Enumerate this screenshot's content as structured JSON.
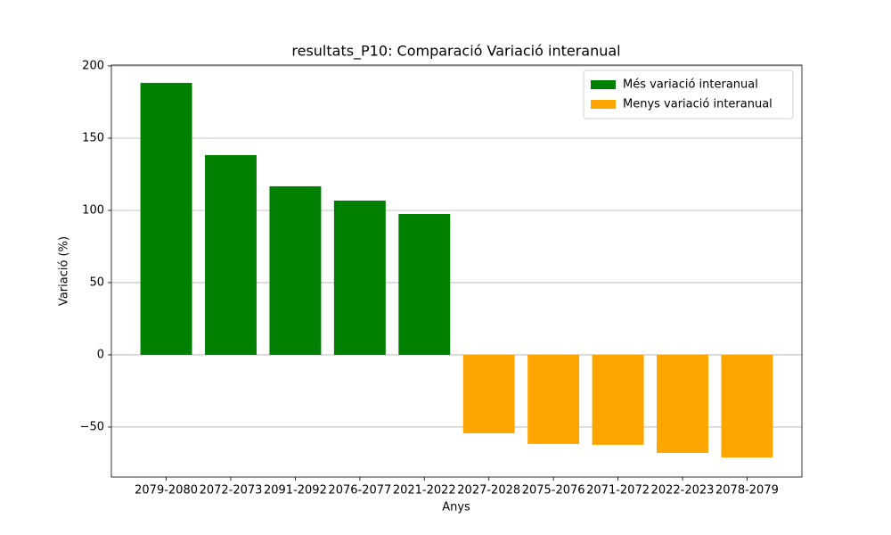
{
  "chart_data": {
    "type": "bar",
    "title": "resultats_P10: Comparació Variació interanual",
    "x_label": "Anys",
    "y_label": "Variació (%)",
    "categories": [
      "2079-2080",
      "2072-2073",
      "2091-2092",
      "2076-2077",
      "2021-2022",
      "2027-2028",
      "2075-2076",
      "2071-2072",
      "2022-2023",
      "2078-2079"
    ],
    "series": [
      {
        "name": "Més variació interanual",
        "color": "#008000",
        "values": [
          188.3,
          138.3,
          116.7,
          106.8,
          97.5,
          null,
          null,
          null,
          null,
          null
        ]
      },
      {
        "name": "Menys variació interanual",
        "color": "#ffa500",
        "values": [
          null,
          null,
          null,
          null,
          null,
          -54.3,
          -61.7,
          -62.3,
          -67.9,
          -71.0
        ]
      }
    ],
    "ylim": [
      -84.6,
      200.6
    ],
    "yticks": [
      {
        "value": -50,
        "label": "−50"
      },
      0,
      50,
      100,
      150,
      200
    ],
    "grid": true,
    "legend": "upper right"
  }
}
